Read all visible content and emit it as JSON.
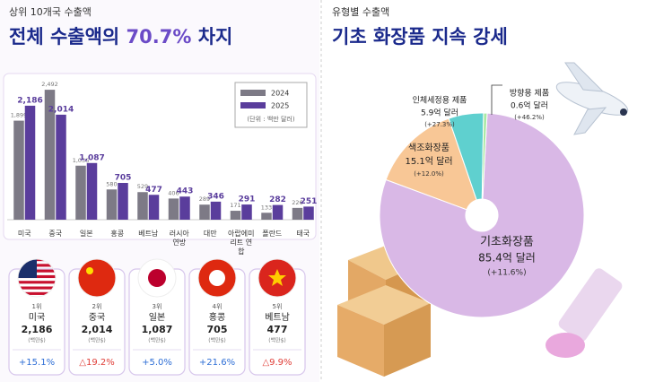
{
  "chart_data": [
    {
      "type": "bar",
      "kicker": "상위 10개국 수출액",
      "title_parts": [
        "전체 수출액의 ",
        "70.7%",
        " 차지"
      ],
      "unit_note": "(단위 : 백만 달러)",
      "categories": [
        "미국",
        "중국",
        "일본",
        "홍콩",
        "베트남",
        "러시아 연방",
        "대만",
        "아랍에미리트 연합",
        "폴란드",
        "태국"
      ],
      "series": [
        {
          "name": "2024",
          "color": "#7d7a86",
          "values": [
            1899,
            2492,
            1036,
            580,
            529,
            406,
            289,
            171,
            133,
            226
          ],
          "value_labels": [
            "1,899",
            "2,492",
            "1,036",
            "580",
            "529",
            "406",
            "289",
            "171",
            "133",
            "226"
          ]
        },
        {
          "name": "2025",
          "color": "#5a3d9c",
          "values": [
            2186,
            2014,
            1087,
            705,
            477,
            443,
            346,
            291,
            282,
            251
          ],
          "value_labels": [
            "2,186",
            "2,014",
            "1,087",
            "705",
            "477",
            "443",
            "346",
            "291",
            "282",
            "251"
          ]
        }
      ],
      "ylim": [
        0,
        2700
      ]
    },
    {
      "type": "pie",
      "kicker": "유형별 수출액",
      "title": "기초 화장품 지속 강세",
      "categories": [
        "기초화장품",
        "색조화장품",
        "인체세정용 제품",
        "방향용 제품"
      ],
      "values": [
        85.4,
        15.1,
        5.9,
        0.6
      ],
      "value_labels": [
        "85.4억 달러",
        "15.1억 달러",
        "5.9억 달러",
        "0.6억 달러"
      ],
      "growth_labels": [
        "(+11.6%)",
        "(+12.0%)",
        "(+27.3%)",
        "(+46.2%)"
      ],
      "colors": [
        "#d9b8e6",
        "#f8c796",
        "#5fd0cf",
        "#a9e8a4"
      ]
    }
  ],
  "cards": [
    {
      "rank": "1위",
      "country": "미국",
      "value": "2,186",
      "unit": "(백만$)",
      "growth": "+15.1%",
      "color": "#2f6fd6"
    },
    {
      "rank": "2위",
      "country": "중국",
      "value": "2,014",
      "unit": "(백만$)",
      "growth": "△19.2%",
      "color": "#e0403a"
    },
    {
      "rank": "3위",
      "country": "일본",
      "value": "1,087",
      "unit": "(백만$)",
      "growth": "+5.0%",
      "color": "#2f6fd6"
    },
    {
      "rank": "4위",
      "country": "홍콩",
      "value": "705",
      "unit": "(백만$)",
      "growth": "+21.6%",
      "color": "#2f6fd6"
    },
    {
      "rank": "5위",
      "country": "베트남",
      "value": "477",
      "unit": "(백만$)",
      "growth": "△9.9%",
      "color": "#e0403a"
    }
  ]
}
